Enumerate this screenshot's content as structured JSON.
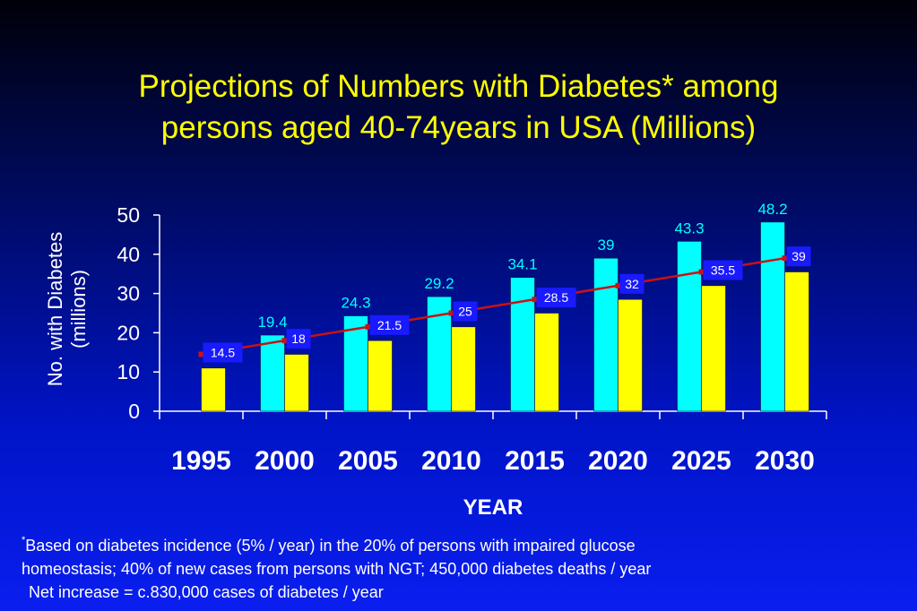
{
  "title_line1": "Projections of Numbers with Diabetes* among",
  "title_line2": "persons aged 40-74years in USA (Millions)",
  "colors": {
    "bar_cyan": "#00ffff",
    "bar_yellow": "#ffff00",
    "line": "#cc1111",
    "label_cyan": "#00ffff",
    "label_box": "#1a1aff",
    "title": "#ffff00"
  },
  "chart_data": {
    "type": "bar",
    "title": "Projections of Numbers with Diabetes* among persons aged 40-74years in USA (Millions)",
    "xlabel": "YEAR",
    "ylabel": "No. with Diabetes (millions)",
    "ylabel_line1": "No. with Diabetes",
    "ylabel_line2": "(millions)",
    "ylim": [
      0,
      50
    ],
    "yticks": [
      0,
      10,
      20,
      30,
      40,
      50
    ],
    "categories": [
      "1995",
      "2000",
      "2005",
      "2010",
      "2015",
      "2020",
      "2025",
      "2030"
    ],
    "series": [
      {
        "values": [
          null,
          19.4,
          24.3,
          29.2,
          34.1,
          39,
          43.3,
          48.2
        ]
      },
      {
        "values": [
          11,
          14.5,
          18,
          21.5,
          25,
          28.5,
          32,
          35.5
        ]
      },
      {
        "values": [
          14.5,
          18,
          21.5,
          25,
          28.5,
          32,
          35.5,
          39
        ]
      }
    ],
    "grid": false,
    "legend": "none"
  },
  "footnote": {
    "marker": "*",
    "line1": "Based on diabetes incidence (5% / year) in the 20% of persons with impaired glucose",
    "line2": "homeostasis; 40% of new cases from persons with NGT; 450,000 diabetes deaths / year",
    "line3": "Net increase = c.830,000 cases of diabetes / year"
  }
}
